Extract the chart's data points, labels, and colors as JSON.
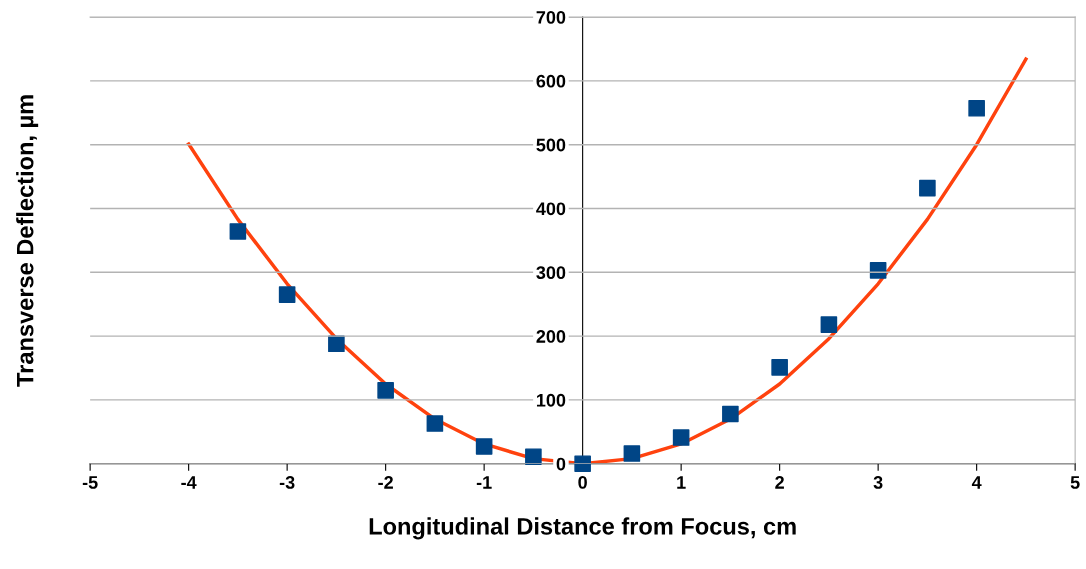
{
  "chart_data": {
    "type": "scatter",
    "xlabel": "Longitudinal Distance from Focus, cm",
    "ylabel": "Transverse Deflection, µm",
    "xlim": [
      -5,
      5
    ],
    "xticks": [
      -5,
      -4,
      -3,
      -2,
      -1,
      0,
      1,
      2,
      3,
      4,
      5
    ],
    "ylim": [
      0,
      700
    ],
    "yticks": [
      0,
      100,
      200,
      300,
      400,
      500,
      600,
      700
    ],
    "grid": "y",
    "legend": false,
    "marker": "square",
    "series": [
      {
        "type": "line",
        "color": "#ff420e",
        "x": [
          -4,
          -3.5,
          -3,
          -2.5,
          -2,
          -1.5,
          -1,
          -0.5,
          0,
          0.5,
          1,
          1.5,
          2,
          2.5,
          3,
          3.5,
          4,
          4.5
        ],
        "values": [
          501,
          383,
          282,
          196,
          125,
          70,
          31,
          8,
          0,
          8,
          31,
          70,
          125,
          196,
          282,
          383,
          500,
          634
        ],
        "marker": "none"
      },
      {
        "color": "#004586",
        "x": [
          -3.5,
          -3,
          -2.5,
          -2,
          -1.5,
          -1,
          -0.5,
          0,
          0.5,
          1,
          1.5,
          2,
          2.5,
          3,
          3.5,
          4
        ],
        "values": [
          364,
          265,
          188,
          115,
          63,
          27,
          11,
          0,
          16,
          41,
          78,
          151,
          218,
          303,
          432,
          557
        ]
      }
    ]
  }
}
